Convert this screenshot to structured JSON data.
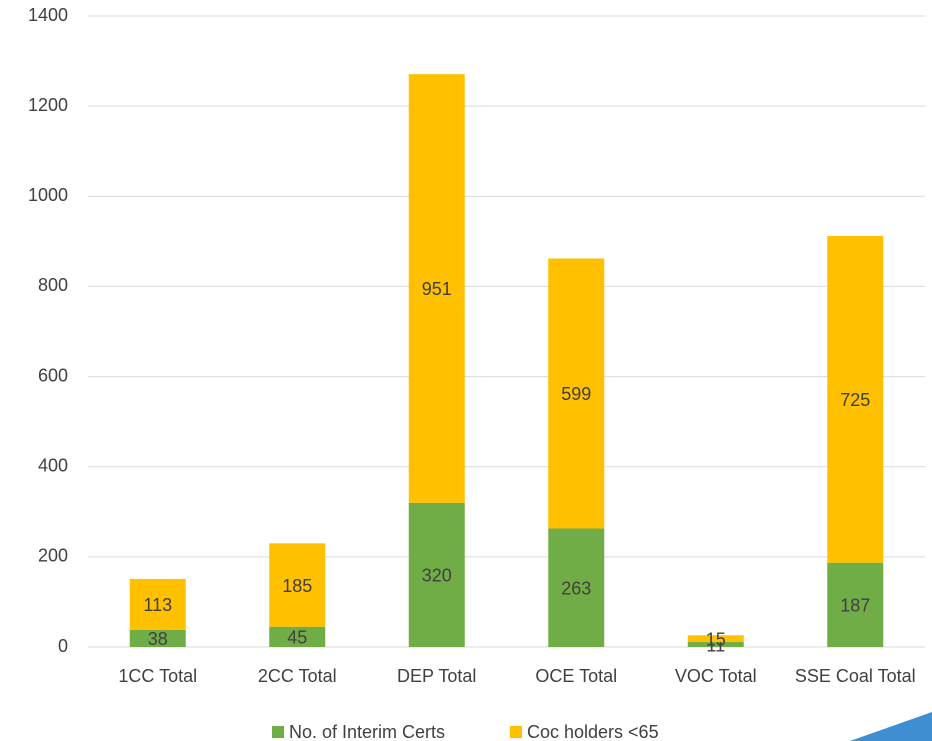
{
  "chart_data": {
    "type": "stacked_bar",
    "categories": [
      "1CC Total",
      "2CC Total",
      "DEP Total",
      "OCE Total",
      "VOC Total",
      "SSE Coal Total"
    ],
    "series": [
      {
        "name": "No. of Interim Certs",
        "color": "#70ad47",
        "values": [
          38,
          45,
          320,
          263,
          11,
          187
        ]
      },
      {
        "name": "Coc holders <65",
        "color": "#ffc000",
        "values": [
          113,
          185,
          951,
          599,
          15,
          725
        ]
      }
    ],
    "ylim": [
      0,
      1400
    ],
    "yticks": [
      0,
      200,
      400,
      600,
      800,
      1000,
      1200,
      1400
    ],
    "grid": true,
    "legend": "bottom"
  }
}
